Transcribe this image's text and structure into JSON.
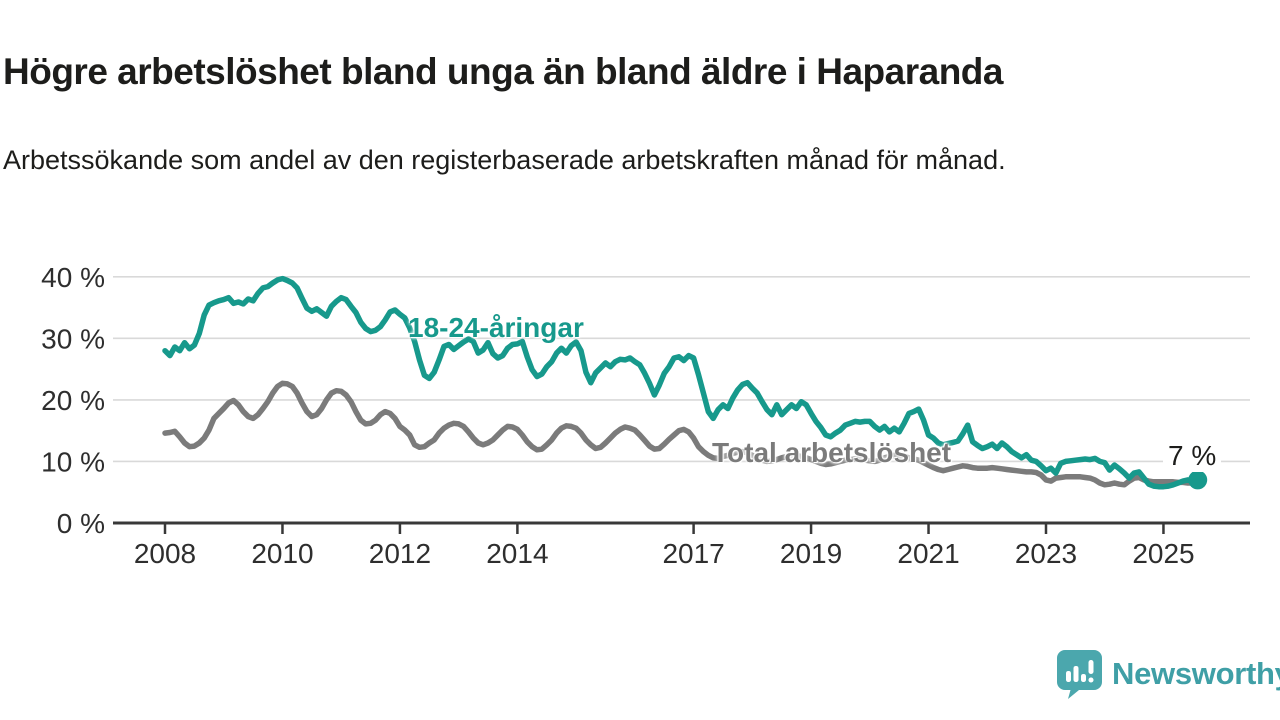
{
  "header": {
    "title": "Högre arbetslöshet bland unga än bland äldre i Haparanda",
    "subtitle": "Arbetssökande som andel av den registerbaserade arbetskraften månad för månad."
  },
  "chart_data": {
    "type": "line",
    "title": "Högre arbetslöshet bland unga än bland äldre i Haparanda",
    "subtitle": "Arbetssökande som andel av den registerbaserade arbetskraften månad för månad.",
    "unit": "%",
    "frequency": "monthly",
    "x_start": "2008-01",
    "x_end": "2025-08",
    "x_tick_years": [
      2008,
      2010,
      2012,
      2014,
      2017,
      2019,
      2021,
      2023,
      2025
    ],
    "x_tick_labels": [
      "2008",
      "2010",
      "2012",
      "2014",
      "2017",
      "2019",
      "2021",
      "2023",
      "2025"
    ],
    "y_ticks": [
      {
        "value": 0,
        "label": "0 %"
      },
      {
        "value": 10,
        "label": "10 %"
      },
      {
        "value": 20,
        "label": "20 %"
      },
      {
        "value": 30,
        "label": "30 %"
      },
      {
        "value": 40,
        "label": "40 %"
      }
    ],
    "ylim": [
      0,
      42
    ],
    "grid": "horizontal",
    "legend_position": "inline-labels",
    "series": [
      {
        "name": "18-24-åringar",
        "color": "#17998c",
        "values": [
          28.0,
          27.2,
          28.6,
          28.0,
          29.3,
          28.3,
          28.9,
          30.8,
          33.8,
          35.4,
          35.8,
          36.1,
          36.3,
          36.6,
          35.7,
          35.9,
          35.6,
          36.4,
          36.1,
          37.3,
          38.2,
          38.4,
          39.0,
          39.5,
          39.7,
          39.4,
          39.0,
          38.2,
          36.5,
          34.9,
          34.4,
          34.8,
          34.2,
          33.6,
          35.2,
          36.0,
          36.6,
          36.3,
          35.2,
          34.2,
          32.6,
          31.6,
          31.1,
          31.3,
          31.9,
          33.0,
          34.3,
          34.6,
          33.9,
          33.3,
          31.7,
          29.5,
          26.5,
          24.0,
          23.5,
          24.5,
          26.5,
          28.7,
          29.0,
          28.2,
          28.8,
          29.4,
          29.9,
          29.5,
          27.6,
          28.1,
          29.3,
          27.5,
          26.8,
          27.2,
          28.4,
          29.0,
          29.1,
          29.5,
          27.0,
          24.9,
          23.8,
          24.2,
          25.4,
          26.2,
          27.6,
          28.4,
          27.6,
          28.8,
          29.4,
          28.0,
          24.5,
          22.8,
          24.4,
          25.2,
          26.0,
          25.4,
          26.2,
          26.6,
          26.5,
          26.8,
          26.2,
          25.7,
          24.3,
          22.7,
          20.8,
          22.4,
          24.3,
          25.4,
          26.8,
          27.0,
          26.4,
          27.2,
          26.8,
          24.1,
          21.1,
          18.1,
          17.0,
          18.4,
          19.2,
          18.6,
          20.3,
          21.6,
          22.5,
          22.8,
          21.9,
          21.1,
          19.7,
          18.4,
          17.6,
          19.2,
          17.6,
          18.4,
          19.2,
          18.6,
          19.7,
          19.2,
          17.8,
          16.5,
          15.5,
          14.3,
          14.0,
          14.6,
          15.1,
          15.9,
          16.2,
          16.5,
          16.4,
          16.5,
          16.5,
          15.7,
          15.1,
          15.7,
          14.8,
          15.4,
          14.8,
          16.2,
          17.8,
          18.1,
          18.5,
          16.7,
          14.3,
          13.8,
          13.0,
          12.7,
          12.9,
          13.1,
          13.3,
          14.5,
          15.9,
          13.2,
          12.6,
          12.1,
          12.4,
          12.8,
          12.1,
          13.0,
          12.4,
          11.6,
          11.1,
          10.6,
          11.1,
          10.2,
          10.0,
          9.3,
          8.5,
          8.9,
          8.1,
          9.7,
          10.0,
          10.1,
          10.2,
          10.3,
          10.4,
          10.3,
          10.5,
          10.0,
          9.8,
          8.6,
          9.4,
          8.8,
          8.1,
          7.3,
          8.1,
          8.3,
          7.3,
          6.3,
          6.0,
          5.9,
          5.9,
          6.0,
          6.2,
          6.5,
          6.8,
          7.0,
          6.7,
          7.0
        ]
      },
      {
        "name": "Total arbetslöshet",
        "color": "#7b7b7b",
        "values": [
          14.6,
          14.7,
          14.9,
          14.0,
          13.0,
          12.4,
          12.5,
          13.0,
          13.8,
          15.1,
          17.0,
          17.8,
          18.6,
          19.5,
          19.9,
          19.2,
          18.1,
          17.3,
          17.0,
          17.6,
          18.6,
          19.7,
          21.1,
          22.2,
          22.7,
          22.6,
          22.2,
          21.1,
          19.5,
          18.1,
          17.3,
          17.6,
          18.6,
          20.0,
          21.1,
          21.5,
          21.4,
          20.8,
          19.7,
          18.1,
          16.7,
          16.1,
          16.2,
          16.7,
          17.6,
          18.1,
          17.8,
          17.0,
          15.7,
          15.1,
          14.3,
          12.7,
          12.3,
          12.4,
          13.0,
          13.5,
          14.6,
          15.4,
          15.9,
          16.2,
          16.1,
          15.7,
          14.8,
          13.8,
          13.0,
          12.7,
          13.0,
          13.5,
          14.3,
          15.1,
          15.7,
          15.6,
          15.2,
          14.3,
          13.2,
          12.4,
          11.9,
          12.0,
          12.7,
          13.5,
          14.6,
          15.4,
          15.8,
          15.7,
          15.4,
          14.6,
          13.5,
          12.7,
          12.1,
          12.3,
          13.0,
          13.8,
          14.6,
          15.2,
          15.6,
          15.4,
          15.1,
          14.3,
          13.4,
          12.5,
          12.0,
          12.1,
          12.8,
          13.6,
          14.3,
          15.0,
          15.2,
          14.8,
          13.8,
          12.4,
          11.6,
          11.0,
          10.6,
          10.5,
          10.8,
          11.0,
          11.3,
          11.5,
          11.6,
          11.4,
          11.0,
          10.6,
          10.2,
          10.0,
          10.1,
          10.3,
          10.6,
          10.8,
          11.0,
          11.0,
          10.8,
          10.6,
          10.3,
          10.0,
          9.7,
          9.5,
          9.6,
          9.8,
          10.0,
          10.2,
          10.3,
          10.4,
          10.3,
          10.2,
          10.1,
          10.0,
          10.2,
          10.6,
          10.8,
          11.0,
          10.9,
          10.8,
          10.6,
          10.4,
          10.2,
          9.8,
          9.4,
          9.0,
          8.7,
          8.5,
          8.7,
          8.9,
          9.1,
          9.3,
          9.2,
          9.0,
          8.9,
          8.9,
          8.9,
          9.0,
          8.9,
          8.8,
          8.7,
          8.6,
          8.5,
          8.4,
          8.3,
          8.3,
          8.2,
          7.8,
          7.0,
          6.8,
          7.3,
          7.4,
          7.5,
          7.5,
          7.5,
          7.5,
          7.4,
          7.3,
          7.0,
          6.5,
          6.2,
          6.3,
          6.5,
          6.3,
          6.2,
          6.8,
          7.3,
          7.4,
          7.0,
          6.8,
          6.7,
          6.7,
          6.7,
          6.7,
          6.7,
          6.6,
          6.6,
          6.5,
          6.5,
          6.6
        ]
      }
    ],
    "annotations": {
      "end_label": "7 %",
      "end_value": 7,
      "end_series": "18-24-åringar"
    }
  },
  "footer": {
    "brand": "Newsworthy",
    "logo_icon": "newsworthy-speech-bubble-bar-chart-icon"
  },
  "colors": {
    "young_series": "#17998c",
    "total_series": "#7b7b7b",
    "gridline": "#d9d9d9",
    "axis": "#383838",
    "tick_label": "#2e2e2e",
    "text": "#1d1d1b",
    "logo_teal": "#4ba7ad",
    "brand_text": "#3f9fa6"
  }
}
